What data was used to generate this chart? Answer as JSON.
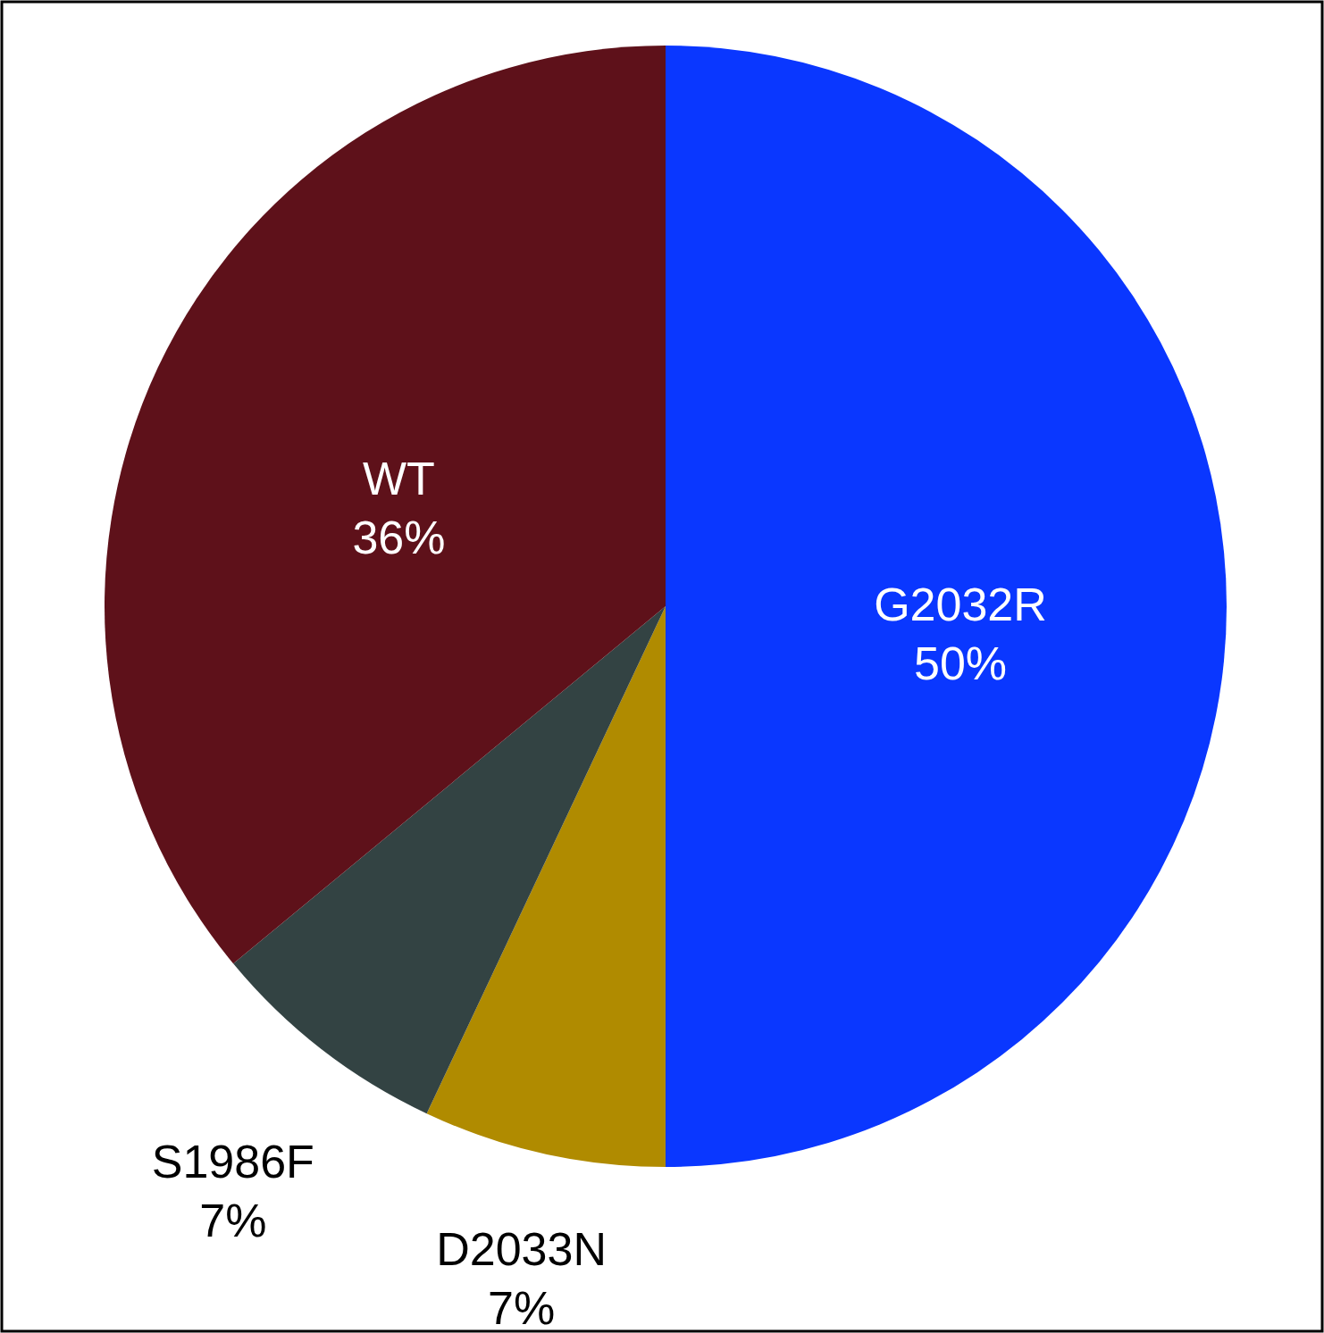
{
  "chart_data": {
    "type": "pie",
    "categories": [
      "G2032R",
      "D2033N",
      "S1986F",
      "WT"
    ],
    "values": [
      50,
      7,
      7,
      36
    ],
    "value_labels": [
      "50%",
      "7%",
      "7%",
      "36%"
    ],
    "colors": [
      "#0a37ff",
      "#b08b00",
      "#334343",
      "#5e111a"
    ]
  }
}
